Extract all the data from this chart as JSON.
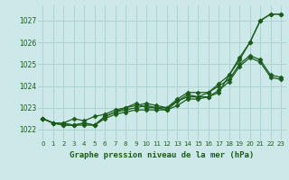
{
  "title": "Graphe pression niveau de la mer (hPa)",
  "bg_color": "#cce8e8",
  "grid_color": "#aacece",
  "line_color": "#1a5c1a",
  "xlim": [
    -0.5,
    23.5
  ],
  "ylim": [
    1021.5,
    1027.7
  ],
  "yticks": [
    1022,
    1023,
    1024,
    1025,
    1026,
    1027
  ],
  "xticks": [
    0,
    1,
    2,
    3,
    4,
    5,
    6,
    7,
    8,
    9,
    10,
    11,
    12,
    13,
    14,
    15,
    16,
    17,
    18,
    19,
    20,
    21,
    22,
    23
  ],
  "series": [
    [
      1022.5,
      1022.3,
      1022.3,
      1022.2,
      1022.2,
      1022.2,
      1022.5,
      1022.7,
      1022.8,
      1022.9,
      1022.9,
      1022.9,
      1022.9,
      1023.3,
      1023.5,
      1023.5,
      1023.5,
      1023.7,
      1024.5,
      1025.2,
      1026.0,
      1027.0,
      1027.3,
      1027.3
    ],
    [
      1022.5,
      1022.3,
      1022.2,
      1022.2,
      1022.3,
      1022.2,
      1022.6,
      1022.8,
      1022.9,
      1023.0,
      1023.1,
      1023.0,
      1022.9,
      1023.1,
      1023.4,
      1023.4,
      1023.5,
      1023.8,
      1024.2,
      1024.9,
      1025.3,
      1025.1,
      1024.4,
      1024.3
    ],
    [
      1022.5,
      1022.3,
      1022.2,
      1022.2,
      1022.3,
      1022.2,
      1022.6,
      1022.8,
      1023.0,
      1023.1,
      1023.2,
      1023.1,
      1023.0,
      1023.3,
      1023.6,
      1023.5,
      1023.7,
      1024.0,
      1024.3,
      1025.0,
      1025.4,
      1025.2,
      1024.5,
      1024.4
    ],
    [
      1022.5,
      1022.3,
      1022.3,
      1022.5,
      1022.4,
      1022.6,
      1022.7,
      1022.9,
      1023.0,
      1023.2,
      1023.0,
      1023.0,
      1023.0,
      1023.4,
      1023.7,
      1023.7,
      1023.7,
      1024.1,
      1024.5,
      1025.3,
      1026.0,
      1027.0,
      1027.3,
      1027.3
    ]
  ],
  "marker": "D",
  "marker_size": 2.5,
  "line_width": 0.9
}
